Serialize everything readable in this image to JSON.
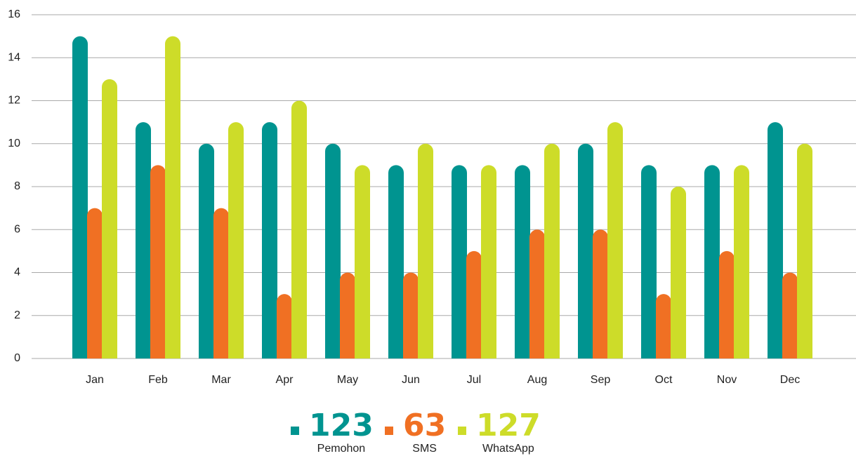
{
  "chart_data": {
    "type": "bar",
    "categories": [
      "Jan",
      "Feb",
      "Mar",
      "Apr",
      "May",
      "Jun",
      "Jul",
      "Aug",
      "Sep",
      "Oct",
      "Nov",
      "Dec"
    ],
    "series": [
      {
        "name": "Pemohon",
        "color": "#009490",
        "total": 123,
        "values": [
          15,
          11,
          10,
          11,
          10,
          9,
          9,
          9,
          10,
          9,
          9,
          11
        ]
      },
      {
        "name": "SMS",
        "color": "#f07023",
        "total": 63,
        "values": [
          7,
          9,
          7,
          3,
          4,
          4,
          5,
          6,
          6,
          3,
          5,
          4
        ]
      },
      {
        "name": "WhatsApp",
        "color": "#cddc29",
        "total": 127,
        "values": [
          13,
          15,
          11,
          12,
          9,
          10,
          9,
          10,
          11,
          8,
          9,
          10
        ]
      }
    ],
    "ylim": [
      0,
      16
    ],
    "yticks": [
      0,
      2,
      4,
      6,
      8,
      10,
      12,
      14,
      16
    ],
    "grid": true
  }
}
